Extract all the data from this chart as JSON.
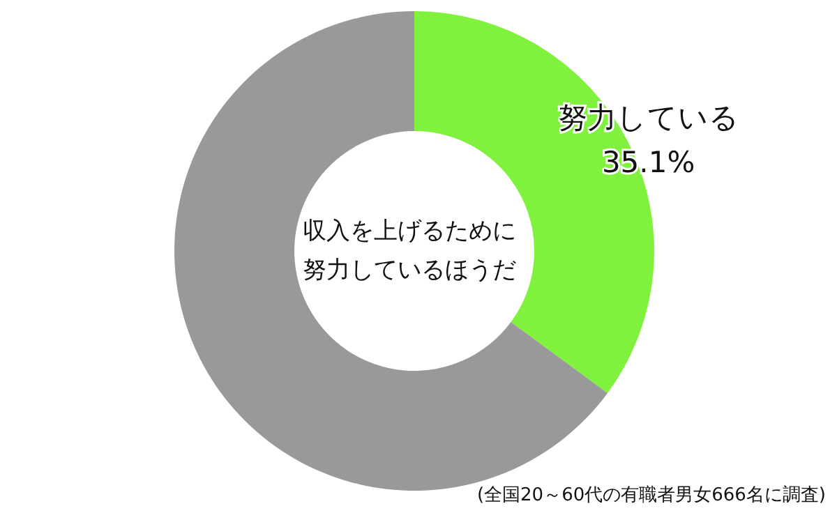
{
  "chart_data": {
    "type": "donut",
    "title": "収入を上げるために努力しているほうだ",
    "categories": [
      "努力している",
      null
    ],
    "values": [
      35.1,
      64.9
    ],
    "colors": [
      "#80f23e",
      "#999999"
    ],
    "value_labels": [
      "35.1%",
      null
    ],
    "legend": false,
    "annotations": [
      "(全国20～60代の有職者男女666名に調査)"
    ]
  }
}
